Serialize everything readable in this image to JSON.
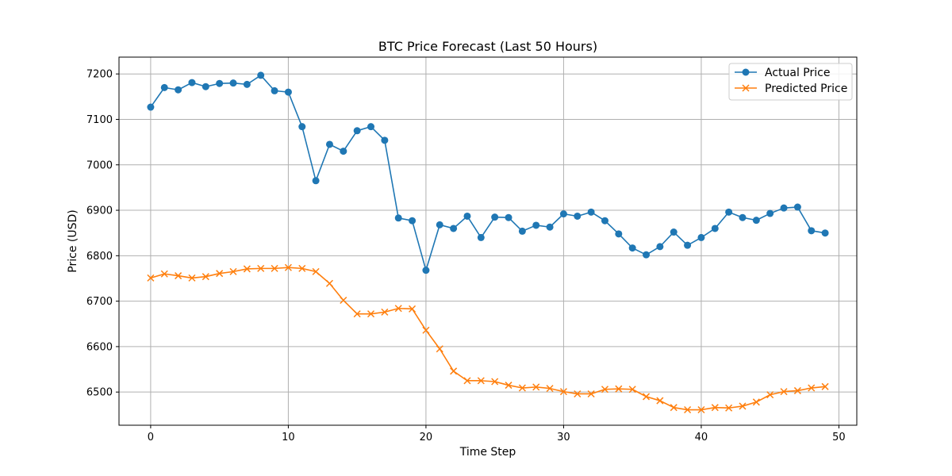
{
  "chart_data": {
    "type": "line",
    "title": "BTC Price Forecast (Last 50 Hours)",
    "xlabel": "Time Step",
    "ylabel": "Price (USD)",
    "xlim": [
      -2.3,
      51.3
    ],
    "ylim": [
      6427,
      7237
    ],
    "xticks": [
      0,
      10,
      20,
      30,
      40,
      50
    ],
    "yticks": [
      6500,
      6600,
      6700,
      6800,
      6900,
      7000,
      7100,
      7200
    ],
    "grid": true,
    "legend_position": "top-right",
    "x": [
      0,
      1,
      2,
      3,
      4,
      5,
      6,
      7,
      8,
      9,
      10,
      11,
      12,
      13,
      14,
      15,
      16,
      17,
      18,
      19,
      20,
      21,
      22,
      23,
      24,
      25,
      26,
      27,
      28,
      29,
      30,
      31,
      32,
      33,
      34,
      35,
      36,
      37,
      38,
      39,
      40,
      41,
      42,
      43,
      44,
      45,
      46,
      47,
      48,
      49
    ],
    "series": [
      {
        "name": "Actual Price",
        "color": "#1f77b4",
        "marker": "circle",
        "values": [
          7127,
          7170,
          7165,
          7181,
          7172,
          7179,
          7180,
          7177,
          7197,
          7163,
          7160,
          7084,
          6965,
          7045,
          7030,
          7075,
          7084,
          7054,
          6883,
          6877,
          6768,
          6868,
          6860,
          6887,
          6840,
          6885,
          6884,
          6854,
          6867,
          6863,
          6892,
          6887,
          6896,
          6877,
          6848,
          6817,
          6802,
          6820,
          6852,
          6823,
          6840,
          6860,
          6896,
          6884,
          6878,
          6893,
          6905,
          6907,
          6855,
          6850
        ]
      },
      {
        "name": "Predicted Price",
        "color": "#ff7f0e",
        "marker": "x",
        "values": [
          6751,
          6760,
          6756,
          6751,
          6754,
          6761,
          6765,
          6771,
          6772,
          6772,
          6774,
          6772,
          6765,
          6739,
          6702,
          6672,
          6672,
          6676,
          6684,
          6683,
          6636,
          6595,
          6546,
          6525,
          6525,
          6523,
          6515,
          6509,
          6511,
          6508,
          6501,
          6496,
          6496,
          6506,
          6507,
          6506,
          6490,
          6481,
          6466,
          6461,
          6461,
          6466,
          6465,
          6469,
          6478,
          6494,
          6501,
          6503,
          6509,
          6512
        ]
      }
    ]
  }
}
